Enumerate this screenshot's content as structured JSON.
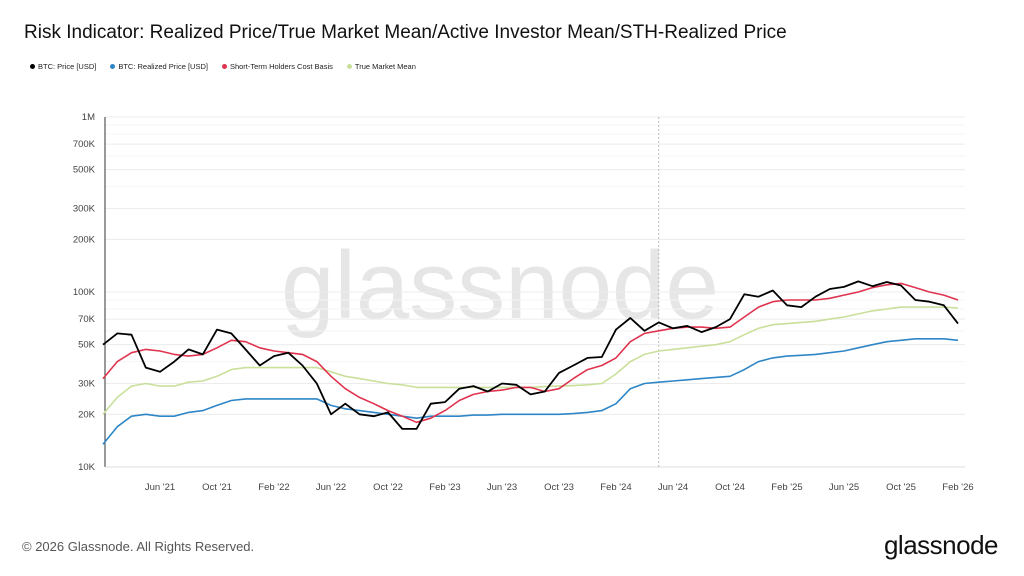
{
  "title": "Risk Indicator: Realized Price/True Market Mean/Active Investor Mean/STH-Realized Price",
  "footer": "© 2026 Glassnode. All Rights Reserved.",
  "logo": "glassnode",
  "watermark": "glassnode",
  "chart_data": {
    "type": "line",
    "yscale": "log",
    "ylim": [
      10000,
      1000000
    ],
    "grid": true,
    "legend": "top-left",
    "y_ticks": [
      "1M",
      "700K",
      "500K",
      "300K",
      "200K",
      "100K",
      "70K",
      "50K",
      "30K",
      "20K",
      "10K"
    ],
    "y_tick_values": [
      1000000,
      700000,
      500000,
      300000,
      200000,
      100000,
      70000,
      50000,
      30000,
      20000,
      10000
    ],
    "x_ticks": [
      "Jun '21",
      "Oct '21",
      "Feb '22",
      "Jun '22",
      "Oct '22",
      "Feb '23",
      "Jun '23",
      "Oct '23",
      "Feb '24",
      "Jun '24",
      "Oct '24",
      "Feb '25",
      "Jun '25",
      "Oct '25",
      "Feb '26"
    ],
    "x_tick_dates": [
      "2021-06",
      "2021-10",
      "2022-02",
      "2022-06",
      "2022-10",
      "2023-02",
      "2023-06",
      "2023-10",
      "2024-02",
      "2024-06",
      "2024-10",
      "2025-02",
      "2025-06",
      "2025-10",
      "2026-02"
    ],
    "marker_line_date": "2024-05",
    "x": [
      "2021-02",
      "2021-03",
      "2021-04",
      "2021-05",
      "2021-06",
      "2021-07",
      "2021-08",
      "2021-09",
      "2021-10",
      "2021-11",
      "2021-12",
      "2022-01",
      "2022-02",
      "2022-03",
      "2022-04",
      "2022-05",
      "2022-06",
      "2022-07",
      "2022-08",
      "2022-09",
      "2022-10",
      "2022-11",
      "2022-12",
      "2023-01",
      "2023-02",
      "2023-03",
      "2023-04",
      "2023-05",
      "2023-06",
      "2023-07",
      "2023-08",
      "2023-09",
      "2023-10",
      "2023-11",
      "2023-12",
      "2024-01",
      "2024-02",
      "2024-03",
      "2024-04",
      "2024-05",
      "2024-06",
      "2024-07",
      "2024-08",
      "2024-09",
      "2024-10",
      "2024-11",
      "2024-12",
      "2025-01",
      "2025-02",
      "2025-03",
      "2025-04",
      "2025-05",
      "2025-06",
      "2025-07",
      "2025-08",
      "2025-09",
      "2025-10",
      "2025-11",
      "2025-12",
      "2026-01",
      "2026-02"
    ],
    "series": [
      {
        "name": "BTC: Price [USD]",
        "color": "#000000",
        "values": [
          50000,
          58000,
          57000,
          37000,
          35000,
          40000,
          47000,
          44000,
          61000,
          58000,
          47000,
          38000,
          43000,
          45000,
          38000,
          30000,
          20000,
          23000,
          20000,
          19500,
          20500,
          16500,
          16500,
          23000,
          23500,
          28000,
          29000,
          27000,
          30000,
          29500,
          26000,
          27000,
          34500,
          38000,
          42000,
          42500,
          61000,
          71000,
          60000,
          67000,
          62000,
          64000,
          59000,
          63000,
          70000,
          97000,
          94000,
          102000,
          84000,
          82000,
          94000,
          104000,
          107000,
          115000,
          108000,
          114000,
          109000,
          90000,
          88000,
          84000,
          66000
        ]
      },
      {
        "name": "BTC: Realized Price [USD]",
        "color": "#2f86c6",
        "values": [
          13500,
          17000,
          19500,
          20000,
          19500,
          19500,
          20500,
          21000,
          22500,
          24000,
          24500,
          24500,
          24500,
          24500,
          24500,
          24500,
          22500,
          21500,
          21000,
          20500,
          20000,
          19500,
          19000,
          19500,
          19500,
          19500,
          19800,
          19800,
          20000,
          20000,
          20000,
          20000,
          20000,
          20200,
          20500,
          21000,
          23000,
          28000,
          30000,
          30500,
          31000,
          31500,
          32000,
          32500,
          33000,
          36000,
          40000,
          42000,
          43000,
          43500,
          44000,
          45000,
          46000,
          48000,
          50000,
          52000,
          53000,
          54000,
          54000,
          54000,
          53000
        ]
      },
      {
        "name": "Short-Term Holders Cost Basis",
        "color": "#e0334e",
        "values": [
          32000,
          40000,
          45000,
          47000,
          46000,
          44000,
          43000,
          44000,
          48000,
          53000,
          52000,
          48000,
          46000,
          45000,
          44000,
          40000,
          33000,
          28000,
          25000,
          23000,
          21000,
          19500,
          18000,
          19000,
          21000,
          24000,
          26000,
          27000,
          27500,
          28500,
          28500,
          27000,
          28000,
          32000,
          36000,
          38000,
          42000,
          52000,
          58000,
          60000,
          62000,
          63000,
          63000,
          62000,
          63000,
          72000,
          82000,
          88000,
          90000,
          90000,
          90000,
          92000,
          96000,
          100000,
          106000,
          110000,
          112000,
          106000,
          100000,
          96000,
          90000
        ]
      },
      {
        "name": "True Market Mean",
        "color": "#c9e09a",
        "values": [
          20000,
          25000,
          29000,
          30000,
          29000,
          29000,
          30500,
          31000,
          33000,
          36000,
          37000,
          37000,
          37000,
          37000,
          37000,
          37000,
          35000,
          33000,
          32000,
          31000,
          30000,
          29500,
          28500,
          28500,
          28500,
          28500,
          28500,
          28500,
          28500,
          28500,
          28500,
          28800,
          29000,
          29200,
          29500,
          30000,
          34000,
          40000,
          44000,
          46000,
          47000,
          48000,
          49000,
          50000,
          52000,
          57000,
          62000,
          65000,
          66000,
          67000,
          68000,
          70000,
          72000,
          75000,
          78000,
          80000,
          82000,
          82000,
          82000,
          82000,
          81000
        ]
      }
    ]
  }
}
